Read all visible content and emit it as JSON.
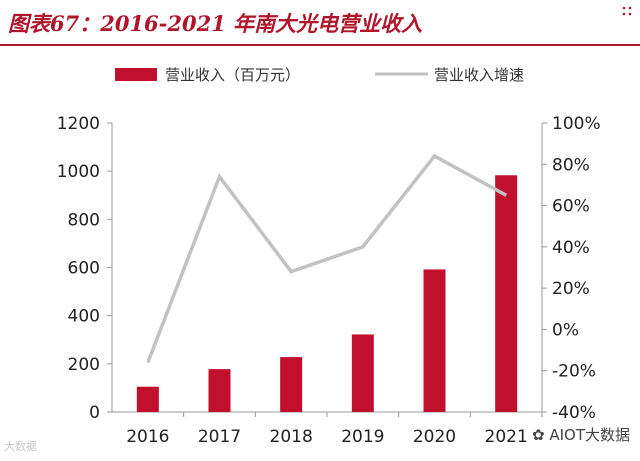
{
  "header": {
    "title": "图表67：2016-2021 年南大光电营业收入"
  },
  "colors": {
    "title": "#b0162b",
    "bar": "#c0102e",
    "line": "#c2c2c2",
    "axis": "#999999"
  },
  "chart_data": {
    "type": "bar",
    "categories": [
      "2016",
      "2017",
      "2018",
      "2019",
      "2020",
      "2021"
    ],
    "series": [
      {
        "name": "营业收入（百万元）",
        "type": "bar",
        "axis": "left",
        "values": [
          105,
          178,
          228,
          322,
          592,
          983
        ]
      },
      {
        "name": "营业收入增速",
        "type": "line",
        "axis": "right",
        "values": [
          -16,
          74,
          28,
          40,
          84,
          65
        ]
      }
    ],
    "y_left": {
      "ylim": [
        0,
        1200
      ],
      "ticks": [
        "0",
        "200",
        "400",
        "600",
        "800",
        "1000",
        "1200"
      ]
    },
    "y_right": {
      "ylim": [
        -40,
        100
      ],
      "ticks": [
        "-40%",
        "-20%",
        "0%",
        "20%",
        "40%",
        "60%",
        "80%",
        "100%"
      ]
    },
    "legend": "top"
  },
  "watermarks": {
    "bottom_right": "AIOT大数据",
    "bottom_left": "大数据"
  }
}
